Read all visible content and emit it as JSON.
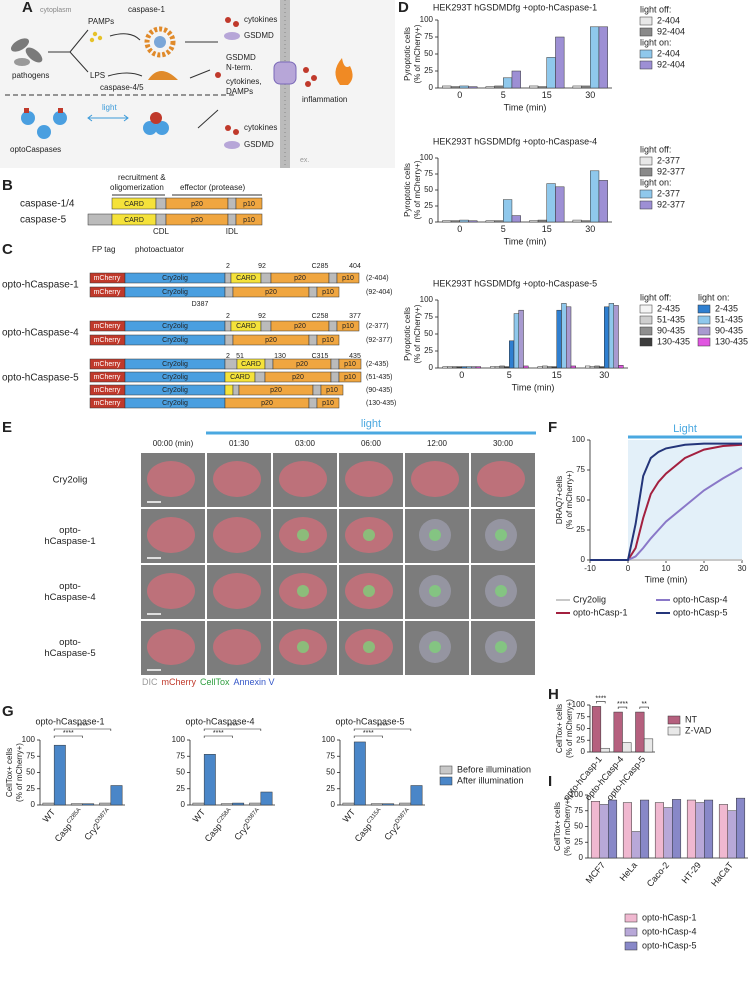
{
  "panel_letters": [
    "A",
    "B",
    "C",
    "D",
    "E",
    "F",
    "G",
    "H",
    "I"
  ],
  "panel_a": {
    "cytoplasm": "cytoplasm",
    "pathogens": "pathogens",
    "pamps": "PAMPs",
    "lps": "LPS",
    "caspase1": "caspase-1",
    "caspase45": "caspase-4/5",
    "opto": "optoCaspases",
    "light": "light",
    "top1": "cytokines",
    "top2": "GSDMD",
    "mid1": "GSDMD",
    "mid2": "N-term.",
    "mid3": "cytokines,",
    "mid4": "DAMPs",
    "bot1": "cytokines",
    "bot2": "GSDMD",
    "inflammation": "inflammation",
    "ex": "ex."
  },
  "panel_b": {
    "header1": "recruitment &",
    "header2": "oligomerization",
    "header3": "effector (protease)",
    "rows": [
      "caspase-1/4",
      "caspase-5"
    ],
    "domains": [
      "CARD",
      "p20",
      "p10"
    ],
    "linkers": [
      "CDL",
      "IDL"
    ]
  },
  "panel_c": {
    "headers": [
      "FP tag",
      "photoactuator"
    ],
    "domains": [
      "mCherry",
      "Cry2olig",
      "CARD",
      "p20",
      "p10"
    ],
    "cry2_mutation": "D387",
    "groups": [
      {
        "name": "opto-hCaspase-1",
        "marks": [
          "2",
          "92",
          "C285",
          "404"
        ],
        "rows": [
          "(2-404)",
          "(92-404)"
        ]
      },
      {
        "name": "opto-hCaspase-4",
        "marks": [
          "2",
          "92",
          "C258",
          "377"
        ],
        "rows": [
          "(2-377)",
          "(92-377)"
        ]
      },
      {
        "name": "opto-hCaspase-5",
        "marks": [
          "2",
          "51",
          "130",
          "C315",
          "435"
        ],
        "rows": [
          "(2-435)",
          "(51-435)",
          "(90-435)",
          "(130-435)"
        ]
      }
    ]
  },
  "panel_e": {
    "light": "light",
    "times": [
      "00:00 (min)",
      "01:30",
      "03:00",
      "06:00",
      "12:00",
      "30:00"
    ],
    "rows": [
      [
        "Cry2olig"
      ],
      [
        "opto-",
        "hCaspase-1"
      ],
      [
        "opto-",
        "hCaspase-4"
      ],
      [
        "opto-",
        "hCaspase-5"
      ]
    ],
    "channels": [
      {
        "name": "DIC",
        "color": "#9a9a9a"
      },
      {
        "name": "mCherry",
        "color": "#c0392b"
      },
      {
        "name": "CellTox",
        "color": "#2e9e3e"
      },
      {
        "name": "Annexin V",
        "color": "#3557c8"
      }
    ]
  },
  "chart_data": [
    {
      "type": "bar",
      "title": "HEK293T hGSDMDfg +opto-hCaspase-1",
      "categories": [
        "0",
        "5",
        "15",
        "30"
      ],
      "xlabel": "Time (min)",
      "ylabel": [
        "Pyroptotic cells",
        "(% of mCherry+)"
      ],
      "ylim": [
        0,
        100
      ],
      "yticks": [
        0,
        25,
        50,
        75,
        100
      ],
      "legend_headers": [
        "light off:",
        "light on:"
      ],
      "legend_header_colors": [
        "#555555",
        "#3b9ad9"
      ],
      "series": [
        {
          "name": "2-404",
          "color": "#e8e8e8",
          "values": [
            3,
            2,
            3,
            3
          ]
        },
        {
          "name": "92-404",
          "color": "#8a8a8a",
          "values": [
            2,
            3,
            2,
            3
          ]
        },
        {
          "name": "2-404",
          "color": "#8fc8ec",
          "values": [
            3,
            15,
            45,
            90
          ]
        },
        {
          "name": "92-404",
          "color": "#9d8fd4",
          "values": [
            2,
            25,
            75,
            90
          ]
        }
      ]
    },
    {
      "type": "bar",
      "title": "HEK293T hGSDMDfg +opto-hCaspase-4",
      "categories": [
        "0",
        "5",
        "15",
        "30"
      ],
      "xlabel": "Time (min)",
      "ylabel": [
        "Pyroptotic cells",
        "(% of mCherry+)"
      ],
      "ylim": [
        0,
        100
      ],
      "yticks": [
        0,
        25,
        50,
        75,
        100
      ],
      "legend_headers": [
        "light off:",
        "light on:"
      ],
      "legend_header_colors": [
        "#555555",
        "#3b9ad9"
      ],
      "series": [
        {
          "name": "2-377",
          "color": "#e8e8e8",
          "values": [
            2,
            2,
            2,
            3
          ]
        },
        {
          "name": "92-377",
          "color": "#8a8a8a",
          "values": [
            2,
            2,
            3,
            2
          ]
        },
        {
          "name": "2-377",
          "color": "#8fc8ec",
          "values": [
            3,
            35,
            60,
            80
          ]
        },
        {
          "name": "92-377",
          "color": "#9d8fd4",
          "values": [
            2,
            10,
            55,
            65
          ]
        }
      ]
    },
    {
      "type": "bar",
      "title": "HEK293T hGSDMDfg +opto-hCaspase-5",
      "categories": [
        "0",
        "5",
        "15",
        "30"
      ],
      "xlabel": "Time (min)",
      "ylabel": [
        "Pyroptotic cells",
        "(% of mCherry+)"
      ],
      "ylim": [
        0,
        100
      ],
      "yticks": [
        0,
        25,
        50,
        75,
        100
      ],
      "legend_headers": [
        "light off:",
        "light on:"
      ],
      "legend_header_colors": [
        "#555555",
        "#3b9ad9"
      ],
      "series": [
        {
          "name": "2-435",
          "color": "#f4f4f4",
          "values": [
            2,
            2,
            2,
            3
          ]
        },
        {
          "name": "51-435",
          "color": "#cfcfcf",
          "values": [
            2,
            2,
            3,
            2
          ]
        },
        {
          "name": "90-435",
          "color": "#8f8f8f",
          "values": [
            2,
            3,
            2,
            3
          ]
        },
        {
          "name": "130-435",
          "color": "#3d3d3d",
          "values": [
            2,
            2,
            2,
            2
          ]
        },
        {
          "name": "2-435",
          "color": "#2f7fd0",
          "values": [
            2,
            40,
            85,
            90
          ]
        },
        {
          "name": "51-435",
          "color": "#8fc8ec",
          "values": [
            2,
            80,
            95,
            95
          ]
        },
        {
          "name": "90-435",
          "color": "#a89ad0",
          "values": [
            2,
            85,
            90,
            92
          ]
        },
        {
          "name": "130-435",
          "color": "#e055e0",
          "values": [
            2,
            3,
            3,
            4
          ]
        }
      ]
    },
    {
      "type": "line",
      "xlabel": "Time (min)",
      "ylabel": [
        "DRAQ7+cells",
        "(% of mCherry+)"
      ],
      "x": [
        -10,
        -5,
        0,
        2,
        4,
        6,
        8,
        10,
        15,
        20,
        25,
        30
      ],
      "xlim": [
        -10,
        30
      ],
      "xticks": [
        -10,
        0,
        10,
        20,
        30
      ],
      "ylim": [
        0,
        100
      ],
      "yticks": [
        0,
        25,
        50,
        75,
        100
      ],
      "annotations": [
        {
          "text": "Light",
          "span": [
            0,
            30
          ]
        }
      ],
      "series": [
        {
          "name": "Cry2olig",
          "color": "#c8c8c8",
          "values": [
            0,
            0,
            0,
            0,
            0,
            0,
            0,
            0,
            0,
            0,
            0,
            0
          ]
        },
        {
          "name": "opto-hCasp-1",
          "color": "#a3203f",
          "values": [
            0,
            0,
            0,
            10,
            35,
            55,
            65,
            72,
            85,
            92,
            95,
            96
          ]
        },
        {
          "name": "opto-hCasp-4",
          "color": "#8a78c8",
          "values": [
            0,
            0,
            0,
            3,
            10,
            18,
            25,
            32,
            45,
            58,
            68,
            77
          ]
        },
        {
          "name": "opto-hCasp-5",
          "color": "#24357a",
          "values": [
            0,
            0,
            0,
            30,
            70,
            85,
            90,
            93,
            96,
            97,
            97,
            97
          ]
        }
      ]
    },
    {
      "type": "bar",
      "title": "opto-hCaspase-1",
      "categories": [
        "WT",
        "Casp",
        "Cry2"
      ],
      "category_superscripts": [
        null,
        "C285A",
        "D387A"
      ],
      "ylabel": [
        "CellTox+ cells",
        "(% of mCherry+)"
      ],
      "ylim": [
        0,
        100
      ],
      "yticks": [
        0,
        25,
        50,
        75,
        100
      ],
      "series": [
        {
          "color": "#c8c8c8",
          "values": [
            3,
            2,
            3
          ]
        },
        {
          "color": "#4a86c8",
          "values": [
            92,
            2,
            30
          ]
        }
      ],
      "significance": [
        {
          "label": "****",
          "categories": [
            0,
            1
          ]
        },
        {
          "label": "****",
          "categories": [
            0,
            2
          ]
        }
      ]
    },
    {
      "type": "bar",
      "title": "opto-hCaspase-4",
      "categories": [
        "WT",
        "Casp",
        "Cry2"
      ],
      "category_superscripts": [
        null,
        "C258A",
        "D387A"
      ],
      "ylim": [
        0,
        100
      ],
      "yticks": [
        0,
        25,
        50,
        75,
        100
      ],
      "series": [
        {
          "color": "#c8c8c8",
          "values": [
            3,
            2,
            3
          ]
        },
        {
          "color": "#4a86c8",
          "values": [
            78,
            3,
            20
          ]
        }
      ],
      "significance": [
        {
          "label": "****",
          "categories": [
            0,
            1
          ]
        },
        {
          "label": "****",
          "categories": [
            0,
            2
          ]
        }
      ]
    },
    {
      "type": "bar",
      "title": "opto-hCaspase-5",
      "categories": [
        "WT",
        "Casp",
        "Cry2"
      ],
      "category_superscripts": [
        null,
        "C315A",
        "D387A"
      ],
      "ylim": [
        0,
        100
      ],
      "yticks": [
        0,
        25,
        50,
        75,
        100
      ],
      "series": [
        {
          "name": "Before illumination",
          "color": "#c8c8c8",
          "values": [
            3,
            2,
            3
          ]
        },
        {
          "name": "After illumination",
          "color": "#4a86c8",
          "values": [
            97,
            2,
            30
          ]
        }
      ],
      "significance": [
        {
          "label": "****",
          "categories": [
            0,
            1
          ]
        },
        {
          "label": "****",
          "categories": [
            0,
            2
          ]
        }
      ]
    },
    {
      "type": "bar",
      "categories": [
        "opto-hCasp-1",
        "opto-hCasp-4",
        "opto-hCasp-5"
      ],
      "ylabel": [
        "CellTox+ cells",
        "(% of mCherry+)"
      ],
      "ylim": [
        0,
        100
      ],
      "yticks": [
        0,
        25,
        50,
        75,
        100
      ],
      "series": [
        {
          "name": "NT",
          "color": "#b5607e",
          "values": [
            97,
            85,
            85
          ]
        },
        {
          "name": "Z-VAD",
          "color": "#e8e8e8",
          "values": [
            8,
            20,
            28
          ]
        }
      ],
      "significance": [
        "****",
        "****",
        "**"
      ]
    },
    {
      "type": "bar",
      "categories": [
        "MCF7",
        "HeLa",
        "Caco-2",
        "HT-29",
        "HaCaT"
      ],
      "ylabel": [
        "CellTox+ cells",
        "(% of mCherry+)"
      ],
      "ylim": [
        0,
        100
      ],
      "yticks": [
        0,
        25,
        50,
        75,
        100
      ],
      "series": [
        {
          "name": "opto-hCasp-1",
          "color": "#f0b8d0",
          "values": [
            90,
            88,
            88,
            92,
            85
          ]
        },
        {
          "name": "opto-hCasp-4",
          "color": "#b8a8d8",
          "values": [
            85,
            42,
            80,
            88,
            75
          ]
        },
        {
          "name": "opto-hCasp-5",
          "color": "#8888c8",
          "values": [
            92,
            92,
            93,
            92,
            95
          ]
        }
      ]
    }
  ]
}
